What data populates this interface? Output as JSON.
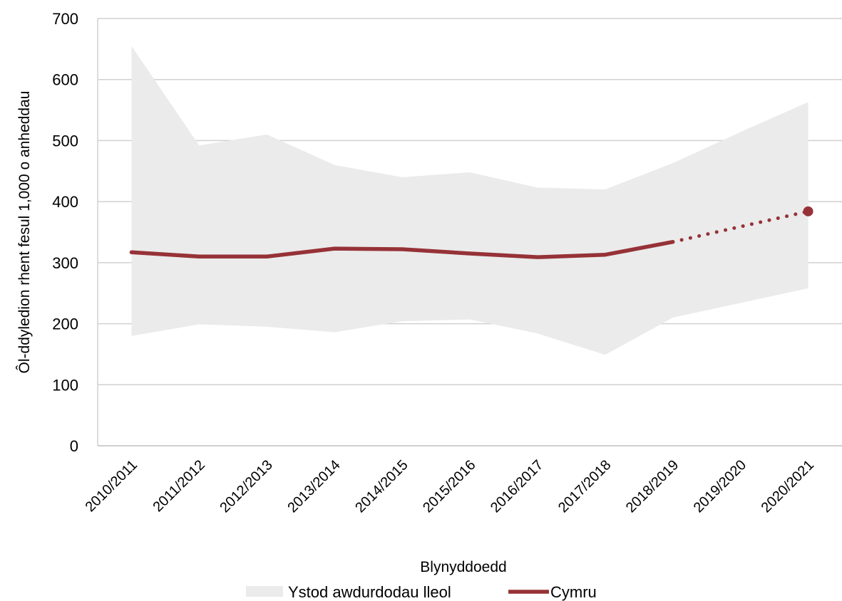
{
  "chart_data": {
    "type": "area",
    "categories": [
      "2010/2011",
      "2011/2012",
      "2012/2013",
      "2013/2014",
      "2014/2015",
      "2015/2016",
      "2016/2017",
      "2017/2018",
      "2018/2019",
      "2019/2020",
      "2020/2021"
    ],
    "ylabel": "Ôl-ddyledion rhent fesul 1,000 o anheddau",
    "xlabel": "Blynyddoedd",
    "ylim": [
      0,
      700
    ],
    "yticks": [
      0,
      100,
      200,
      300,
      400,
      500,
      600,
      700
    ],
    "grid": "horizontal",
    "legend_position": "bottom",
    "series": [
      {
        "name": "Ystod awdurdodau lleol",
        "type": "range-band",
        "color": "#ebebeb",
        "lower": [
          180,
          199,
          195,
          186,
          204,
          207,
          184,
          149,
          210,
          234,
          258
        ],
        "upper": [
          655,
          492,
          510,
          460,
          440,
          448,
          423,
          420,
          463,
          514,
          563
        ]
      },
      {
        "name": "Cymru",
        "type": "line",
        "color": "#963237",
        "values": [
          317,
          310,
          310,
          323,
          322,
          315,
          309,
          313,
          334,
          null,
          384
        ],
        "dotted_from_index": 8,
        "marker_at_index": 10
      }
    ]
  }
}
